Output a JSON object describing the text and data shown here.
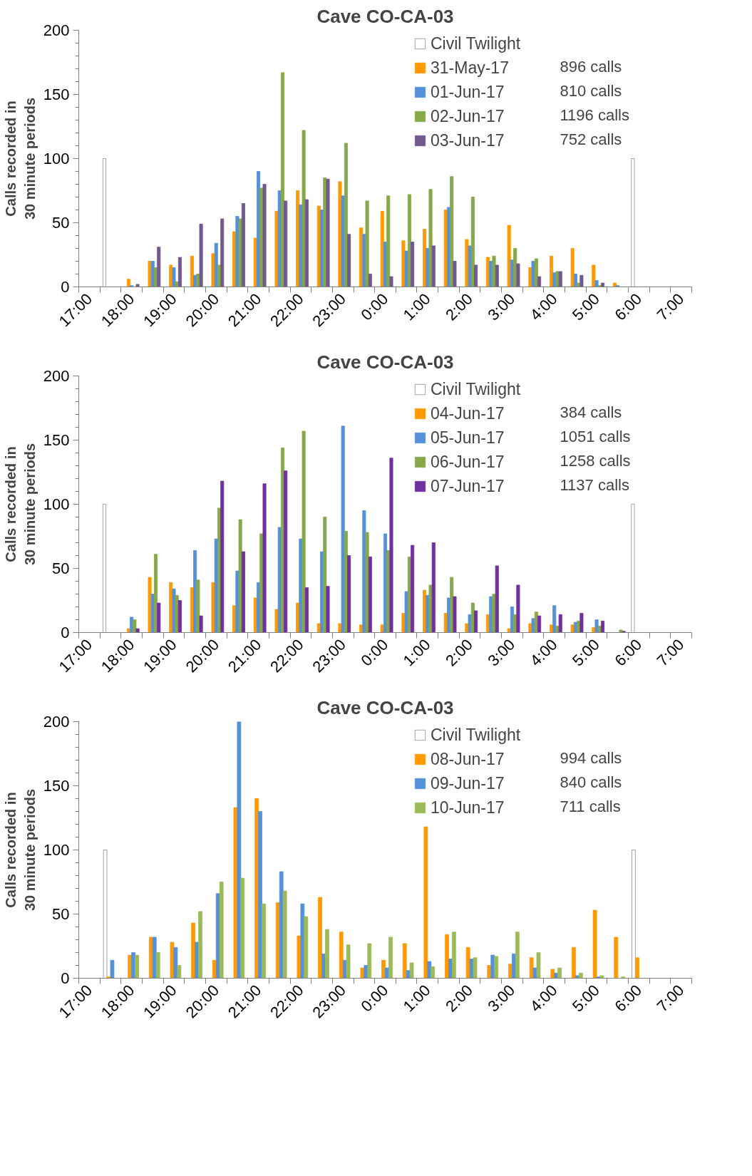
{
  "chart_data": [
    {
      "type": "bar",
      "title": "Cave CO-CA-03",
      "ylabel": "Calls recorded in\n30 minute periods",
      "legend": "top right",
      "categories": [
        "17:00",
        null,
        "18:00",
        null,
        "19:00",
        null,
        "20:00",
        null,
        "21:00",
        null,
        "22:00",
        null,
        "23:00",
        null,
        "0:00",
        null,
        "1:00",
        null,
        "2:00",
        null,
        "3:00",
        null,
        "4:00",
        null,
        "5:00",
        null,
        "6:00",
        null,
        "7:00"
      ],
      "series": [
        {
          "name": "Civil Twilight",
          "color": "#ffffff",
          "values": [
            null,
            100,
            null,
            null,
            null,
            null,
            null,
            null,
            null,
            null,
            null,
            null,
            null,
            null,
            null,
            null,
            null,
            null,
            null,
            null,
            null,
            null,
            null,
            null,
            null,
            null,
            100,
            null,
            null
          ]
        },
        {
          "name": "31-May-17",
          "color": "#ff9900",
          "values": [
            null,
            null,
            6,
            20,
            17,
            24,
            26,
            43,
            38,
            59,
            75,
            63,
            82,
            46,
            59,
            36,
            45,
            60,
            37,
            23,
            48,
            15,
            24,
            30,
            17,
            3,
            null,
            null,
            null
          ]
        },
        {
          "name": "01-Jun-17",
          "color": "#5591d9",
          "values": [
            null,
            null,
            1,
            20,
            15,
            9,
            34,
            55,
            90,
            75,
            64,
            60,
            71,
            41,
            35,
            28,
            30,
            62,
            32,
            20,
            21,
            20,
            11,
            10,
            5,
            1,
            null,
            null,
            null
          ]
        },
        {
          "name": "02-Jun-17",
          "color": "#86a84a",
          "values": [
            null,
            null,
            0,
            15,
            4,
            10,
            17,
            53,
            77,
            167,
            122,
            85,
            112,
            67,
            71,
            72,
            76,
            86,
            70,
            24,
            30,
            22,
            12,
            3,
            1,
            0,
            null,
            null,
            null
          ]
        },
        {
          "name": "03-Jun-17",
          "color": "#71588f",
          "values": [
            null,
            null,
            2,
            31,
            23,
            49,
            53,
            65,
            80,
            67,
            68,
            84,
            41,
            10,
            8,
            35,
            32,
            20,
            17,
            17,
            18,
            8,
            12,
            9,
            3,
            0,
            null,
            null,
            null
          ]
        }
      ],
      "annotations": [
        "896    calls",
        "810    calls",
        "1196  calls",
        "752    calls"
      ],
      "ylim": [
        0,
        200
      ],
      "yticks": [
        0,
        50,
        100,
        150,
        200
      ]
    },
    {
      "type": "bar",
      "title": "Cave CO-CA-03",
      "ylabel": "Calls recorded in\n30 minute periods",
      "legend": "top right",
      "categories": [
        "17:00",
        null,
        "18:00",
        null,
        "19:00",
        null,
        "20:00",
        null,
        "21:00",
        null,
        "22:00",
        null,
        "23:00",
        null,
        "0:00",
        null,
        "1:00",
        null,
        "2:00",
        null,
        "3:00",
        null,
        "4:00",
        null,
        "5:00",
        null,
        "6:00",
        null,
        "7:00"
      ],
      "series": [
        {
          "name": "Civil Twilight",
          "color": "#ffffff",
          "values": [
            null,
            100,
            null,
            null,
            null,
            null,
            null,
            null,
            null,
            null,
            null,
            null,
            null,
            null,
            null,
            null,
            null,
            null,
            null,
            null,
            null,
            null,
            null,
            null,
            null,
            null,
            100,
            null,
            null
          ]
        },
        {
          "name": "04-Jun-17",
          "color": "#ff9900",
          "values": [
            null,
            null,
            3,
            43,
            39,
            35,
            39,
            21,
            27,
            18,
            23,
            7,
            7,
            6,
            6,
            15,
            33,
            15,
            7,
            14,
            3,
            7,
            6,
            6,
            4,
            0,
            null,
            null,
            null
          ]
        },
        {
          "name": "05-Jun-17",
          "color": "#5591d9",
          "values": [
            null,
            null,
            12,
            30,
            34,
            64,
            73,
            48,
            39,
            82,
            73,
            63,
            161,
            95,
            77,
            32,
            29,
            27,
            14,
            28,
            20,
            11,
            21,
            8,
            10,
            0,
            null,
            null,
            null
          ]
        },
        {
          "name": "06-Jun-17",
          "color": "#86a84a",
          "values": [
            null,
            null,
            10,
            61,
            29,
            41,
            97,
            88,
            77,
            144,
            157,
            90,
            79,
            78,
            64,
            59,
            37,
            43,
            23,
            30,
            14,
            16,
            5,
            9,
            5,
            2,
            null,
            null,
            null
          ]
        },
        {
          "name": "07-Jun-17",
          "color": "#7030a0",
          "values": [
            null,
            null,
            3,
            23,
            25,
            13,
            118,
            63,
            116,
            126,
            35,
            36,
            60,
            59,
            136,
            68,
            70,
            28,
            17,
            52,
            37,
            13,
            14,
            15,
            9,
            1,
            null,
            null,
            null
          ]
        }
      ],
      "annotations": [
        "384   calls",
        "1051 calls",
        "1258 calls",
        "1137 calls"
      ],
      "ylim": [
        0,
        200
      ],
      "yticks": [
        0,
        50,
        100,
        150,
        200
      ]
    },
    {
      "type": "bar",
      "title": "Cave CO-CA-03",
      "ylabel": "Calls recorded in\n30 minute periods",
      "legend": "top right",
      "categories": [
        "17:00",
        null,
        "18:00",
        null,
        "19:00",
        null,
        "20:00",
        null,
        "21:00",
        null,
        "22:00",
        null,
        "23:00",
        null,
        "0:00",
        null,
        "1:00",
        null,
        "2:00",
        null,
        "3:00",
        null,
        "4:00",
        null,
        "5:00",
        null,
        "6:00",
        null,
        "7:00"
      ],
      "series": [
        {
          "name": "Civil Twilight",
          "color": "#ffffff",
          "values": [
            null,
            100,
            null,
            null,
            null,
            null,
            null,
            null,
            null,
            null,
            null,
            null,
            null,
            null,
            null,
            null,
            null,
            null,
            null,
            null,
            null,
            null,
            null,
            null,
            null,
            null,
            100,
            null,
            null
          ]
        },
        {
          "name": "08-Jun-17",
          "color": "#ff9900",
          "values": [
            null,
            1,
            18,
            32,
            28,
            43,
            14,
            133,
            140,
            59,
            33,
            63,
            36,
            8,
            14,
            27,
            118,
            34,
            24,
            10,
            11,
            16,
            7,
            24,
            53,
            32,
            16,
            null,
            null
          ]
        },
        {
          "name": "09-Jun-17",
          "color": "#5591d9",
          "values": [
            null,
            14,
            20,
            32,
            24,
            28,
            66,
            200,
            130,
            83,
            58,
            19,
            14,
            10,
            8,
            6,
            13,
            15,
            15,
            18,
            19,
            8,
            4,
            2,
            1,
            0,
            0,
            null,
            null
          ]
        },
        {
          "name": "10-Jun-17",
          "color": "#9bbb59",
          "values": [
            null,
            0,
            18,
            20,
            10,
            52,
            75,
            78,
            58,
            68,
            48,
            38,
            26,
            27,
            32,
            12,
            9,
            36,
            16,
            17,
            36,
            20,
            8,
            4,
            2,
            1,
            0,
            null,
            null
          ]
        }
      ],
      "annotations": [
        "994  calls",
        "840  calls",
        "711  calls"
      ],
      "ylim": [
        0,
        200
      ],
      "yticks": [
        0,
        50,
        100,
        150,
        200
      ]
    }
  ]
}
